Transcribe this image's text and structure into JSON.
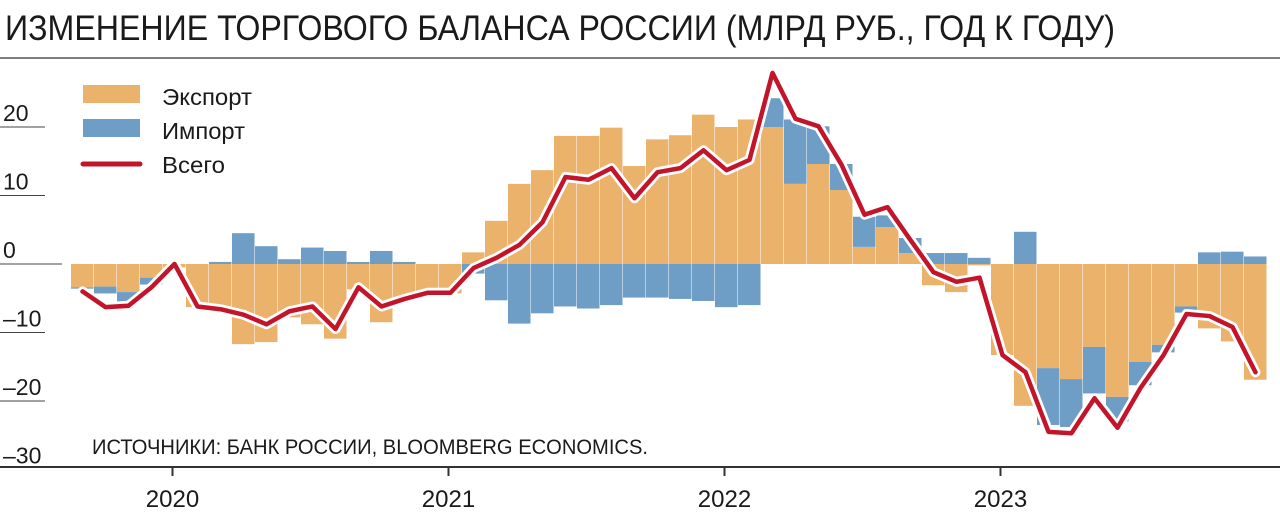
{
  "chart_data": {
    "type": "bar",
    "stacked": true,
    "title": "ИЗМЕНЕНИЕ ТОРГОВОГО БАЛАНСА РОССИИ (МЛРД РУБ., ГОД К ГОДУ)",
    "source": "ИСТОЧНИКИ: БАНК РОССИИ, BLOOMBERG ECONOMICS.",
    "xlabel": "",
    "ylabel": "",
    "ylim": [
      -30,
      28
    ],
    "yticks": [
      20,
      10,
      0,
      -10,
      -20,
      -30
    ],
    "ytick_labels": [
      "20",
      "10",
      "0",
      "–10",
      "–20",
      "–30"
    ],
    "x_start": "2019-09",
    "x_end": "2023-12",
    "xticks": [
      {
        "label": "2020",
        "month_index": 4
      },
      {
        "label": "2021",
        "month_index": 16
      },
      {
        "label": "2022",
        "month_index": 28
      },
      {
        "label": "2023",
        "month_index": 40
      }
    ],
    "legend": {
      "placement": "top-left"
    },
    "colors": {
      "export": "#ebb26c",
      "import": "#6e9ec6",
      "total": "#c2152b"
    },
    "series": [
      {
        "name": "Экспорт",
        "kind": "bar",
        "values": [
          -3.4,
          -3.3,
          -4.1,
          -2.0,
          -0.5,
          -6.3,
          -6.8,
          -11.7,
          -11.4,
          -7.8,
          -8.8,
          -10.9,
          -3.7,
          -8.5,
          -5.4,
          -3.9,
          -4.3,
          1.7,
          6.3,
          11.7,
          13.7,
          18.7,
          18.7,
          19.9,
          14.3,
          18.2,
          18.8,
          21.8,
          20.0,
          21.1,
          20.0,
          11.7,
          14.6,
          10.8,
          2.5,
          5.4,
          1.6,
          -3.1,
          -4.1,
          -0.2,
          -13.3,
          -20.7,
          -15.2,
          -16.8,
          -12.1,
          -19.4,
          -14.3,
          -11.8,
          -6.2,
          -9.4,
          -11.3,
          -16.9
        ]
      },
      {
        "name": "Импорт",
        "kind": "bar",
        "values": [
          -0.2,
          -1.0,
          -1.5,
          -1.0,
          0,
          0,
          0.3,
          4.5,
          2.6,
          0.7,
          2.4,
          1.9,
          0.3,
          1.9,
          0.3,
          -0.3,
          0,
          -1.4,
          -5.3,
          -8.7,
          -7.2,
          -6.2,
          -6.5,
          -6.0,
          -4.9,
          -4.9,
          -5.1,
          -5.4,
          -6.3,
          -6.0,
          4.2,
          9.4,
          5.5,
          3.8,
          4.4,
          1.7,
          2.2,
          1.6,
          1.6,
          0.9,
          0,
          4.7,
          -8.3,
          -7.0,
          -6.8,
          -3.6,
          -3.4,
          -1.1,
          -0.9,
          1.7,
          1.8,
          1.1
        ]
      },
      {
        "name": "Всего",
        "kind": "line",
        "values": [
          -4.0,
          -6.3,
          -6.1,
          -3.4,
          0.0,
          -6.2,
          -6.6,
          -7.4,
          -8.8,
          -6.9,
          -6.2,
          -9.5,
          -3.4,
          -6.2,
          -5.1,
          -4.2,
          -4.2,
          -0.6,
          0.9,
          2.8,
          6.1,
          12.7,
          12.3,
          14.0,
          9.6,
          13.4,
          14.0,
          16.6,
          13.7,
          15.2,
          27.9,
          21.2,
          20.1,
          14.5,
          7.2,
          8.3,
          3.5,
          -1.2,
          -2.6,
          -2.0,
          -13.3,
          -15.8,
          -24.5,
          -24.7,
          -19.6,
          -23.9,
          -18.1,
          -13.3,
          -7.3,
          -7.6,
          -9.2,
          -15.8
        ]
      }
    ]
  }
}
